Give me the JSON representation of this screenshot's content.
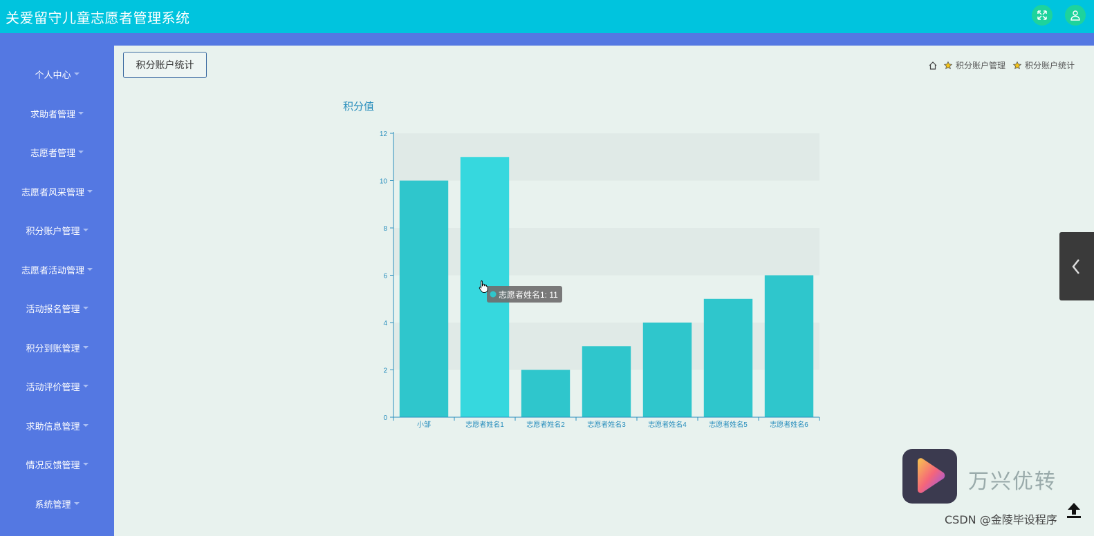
{
  "app": {
    "title": "关爱留守儿童志愿者管理系统"
  },
  "header": {
    "icons": [
      "fullscreen-icon",
      "user-icon"
    ],
    "accent": "#00c4de",
    "icon_bg": "#1ed39c"
  },
  "sidebar": {
    "bg": "#5478e2",
    "items": [
      {
        "label": "个人中心"
      },
      {
        "label": "求助者管理"
      },
      {
        "label": "志愿者管理"
      },
      {
        "label": "志愿者风采管理"
      },
      {
        "label": "积分账户管理"
      },
      {
        "label": "志愿者活动管理"
      },
      {
        "label": "活动报名管理"
      },
      {
        "label": "积分到账管理"
      },
      {
        "label": "活动评价管理"
      },
      {
        "label": "求助信息管理"
      },
      {
        "label": "情况反馈管理"
      },
      {
        "label": "系统管理"
      }
    ]
  },
  "page": {
    "button_label": "积分账户统计",
    "breadcrumb": [
      "积分账户管理",
      "积分账户统计"
    ]
  },
  "chart_data": {
    "type": "bar",
    "title": "积分值",
    "categories": [
      "小邹",
      "志愿者姓名1",
      "志愿者姓名2",
      "志愿者姓名3",
      "志愿者姓名4",
      "志愿者姓名5",
      "志愿者姓名6"
    ],
    "values": [
      10,
      11,
      2,
      3,
      4,
      5,
      6
    ],
    "ylim": [
      0,
      12
    ],
    "yticks": [
      0,
      2,
      4,
      6,
      8,
      10,
      12
    ],
    "bar_color": "#2fc6cc",
    "highlight_color": "#36d8de",
    "highlight_index": 1,
    "axis_color": "#2a8fbd",
    "grid": "alternating bands",
    "tooltip": {
      "text": "志愿者姓名1: 11"
    }
  },
  "overlay": {
    "watermark": "万兴优转",
    "csdn": "CSDN @金陵毕设程序"
  }
}
